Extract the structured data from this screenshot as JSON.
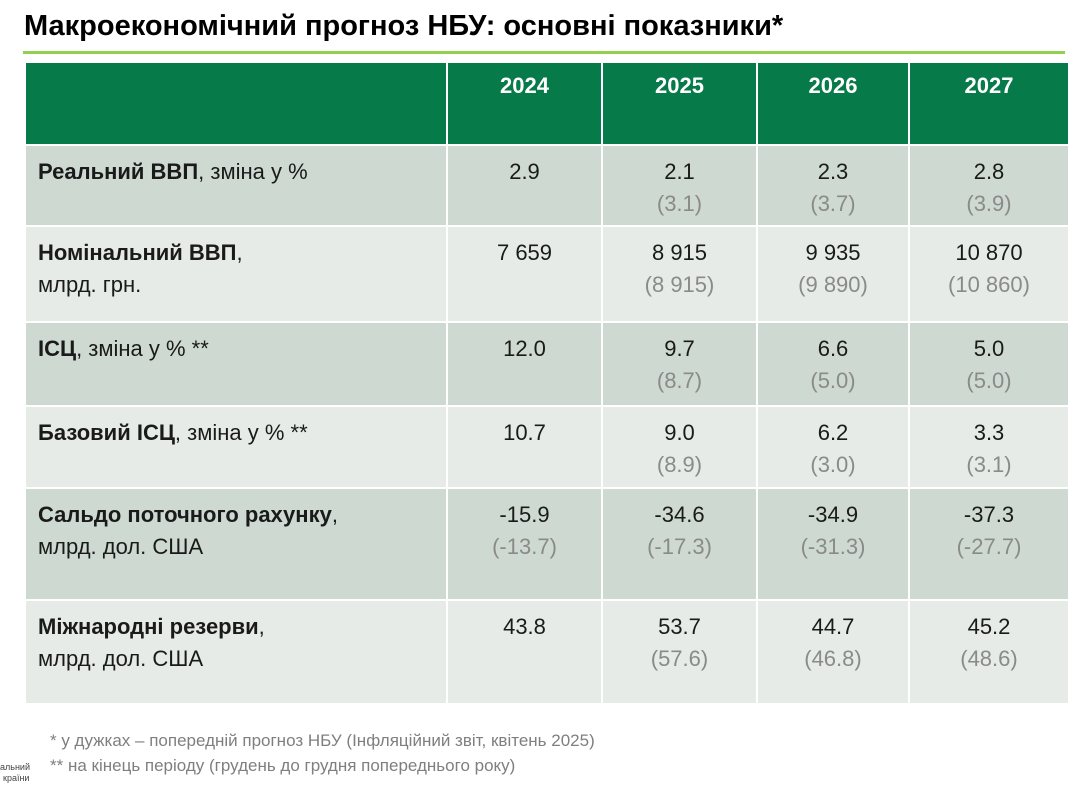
{
  "title": "Макроекономічний прогноз НБУ: основні показники*",
  "colors": {
    "header_bg": "#077a4a",
    "rule": "#92d050",
    "row_dark": "#cdd9d1",
    "row_light": "#e6ebe7"
  },
  "table": {
    "years": [
      "2024",
      "2025",
      "2026",
      "2027"
    ],
    "rows": [
      {
        "label_bold": "Реальний ВВП",
        "label_rest": ", зміна у %",
        "label_line2": "",
        "values": [
          "2.9",
          "2.1",
          "2.3",
          "2.8"
        ],
        "previous": [
          "",
          "(3.1)",
          "(3.7)",
          "(3.9)"
        ]
      },
      {
        "label_bold": "Номінальний ВВП",
        "label_rest": ",",
        "label_line2": "млрд. грн.",
        "values": [
          "7 659",
          "8 915",
          "9 935",
          "10 870"
        ],
        "previous": [
          "",
          "(8 915)",
          "(9 890)",
          "(10 860)"
        ]
      },
      {
        "label_bold": "ІСЦ",
        "label_rest": ", зміна у % **",
        "label_line2": "",
        "values": [
          "12.0",
          "9.7",
          "6.6",
          "5.0"
        ],
        "previous": [
          "",
          "(8.7)",
          "(5.0)",
          "(5.0)"
        ]
      },
      {
        "label_bold": "Базовий ІСЦ",
        "label_rest": ", зміна у % **",
        "label_line2": "",
        "values": [
          "10.7",
          "9.0",
          "6.2",
          "3.3"
        ],
        "previous": [
          "",
          "(8.9)",
          "(3.0)",
          "(3.1)"
        ]
      },
      {
        "label_bold": "Сальдо поточного рахунку",
        "label_rest": ",",
        "label_line2": "млрд. дол. США",
        "values": [
          "-15.9",
          "-34.6",
          "-34.9",
          "-37.3"
        ],
        "previous": [
          "(-13.7)",
          "(-17.3)",
          "(-31.3)",
          "(-27.7)"
        ]
      },
      {
        "label_bold": "Міжнародні резерви",
        "label_rest": ",",
        "label_line2": "млрд. дол. США",
        "values": [
          "43.8",
          "53.7",
          "44.7",
          "45.2"
        ],
        "previous": [
          "",
          "(57.6)",
          "(46.8)",
          "(48.6)"
        ]
      }
    ]
  },
  "notes": [
    "* у дужках – попередній прогноз НБУ (Інфляційний звіт, квітень 2025)",
    "** на кінець періоду (грудень до грудня попереднього року)"
  ],
  "logo_fragment": [
    "альний",
    "країни"
  ]
}
